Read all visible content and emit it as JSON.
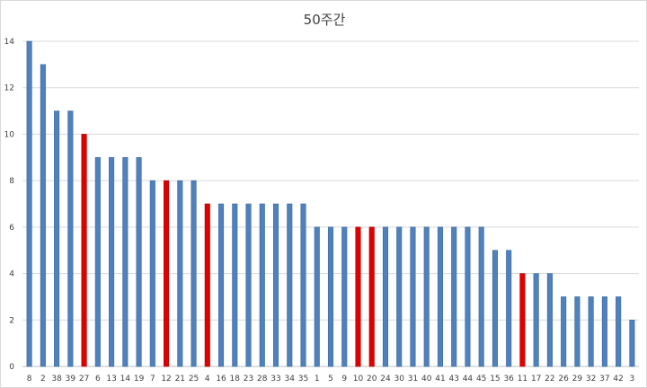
{
  "chart_data": {
    "type": "bar",
    "title": "50주간",
    "xlabel": "",
    "ylabel": "",
    "ylim": [
      0,
      14
    ],
    "yticks": [
      0,
      2,
      4,
      6,
      8,
      10,
      12,
      14
    ],
    "grid": true,
    "legend": "none",
    "colors": {
      "default": "#4F81BD",
      "highlight": "#E00000"
    },
    "categories": [
      "8",
      "2",
      "38",
      "39",
      "27",
      "6",
      "13",
      "14",
      "19",
      "7",
      "12",
      "21",
      "25",
      "4",
      "16",
      "18",
      "23",
      "28",
      "33",
      "34",
      "35",
      "1",
      "5",
      "9",
      "10",
      "20",
      "24",
      "30",
      "31",
      "40",
      "41",
      "43",
      "44",
      "45",
      "15",
      "36",
      "11",
      "17",
      "22",
      "26",
      "29",
      "32",
      "37",
      "42",
      "3"
    ],
    "values": [
      14,
      13,
      11,
      11,
      10,
      9,
      9,
      9,
      9,
      8,
      8,
      8,
      8,
      7,
      7,
      7,
      7,
      7,
      7,
      7,
      7,
      6,
      6,
      6,
      6,
      6,
      6,
      6,
      6,
      6,
      6,
      6,
      6,
      6,
      5,
      5,
      4,
      4,
      4,
      3,
      3,
      3,
      3,
      3,
      2
    ],
    "highlighted": [
      "27",
      "12",
      "4",
      "10",
      "20",
      "11"
    ]
  }
}
